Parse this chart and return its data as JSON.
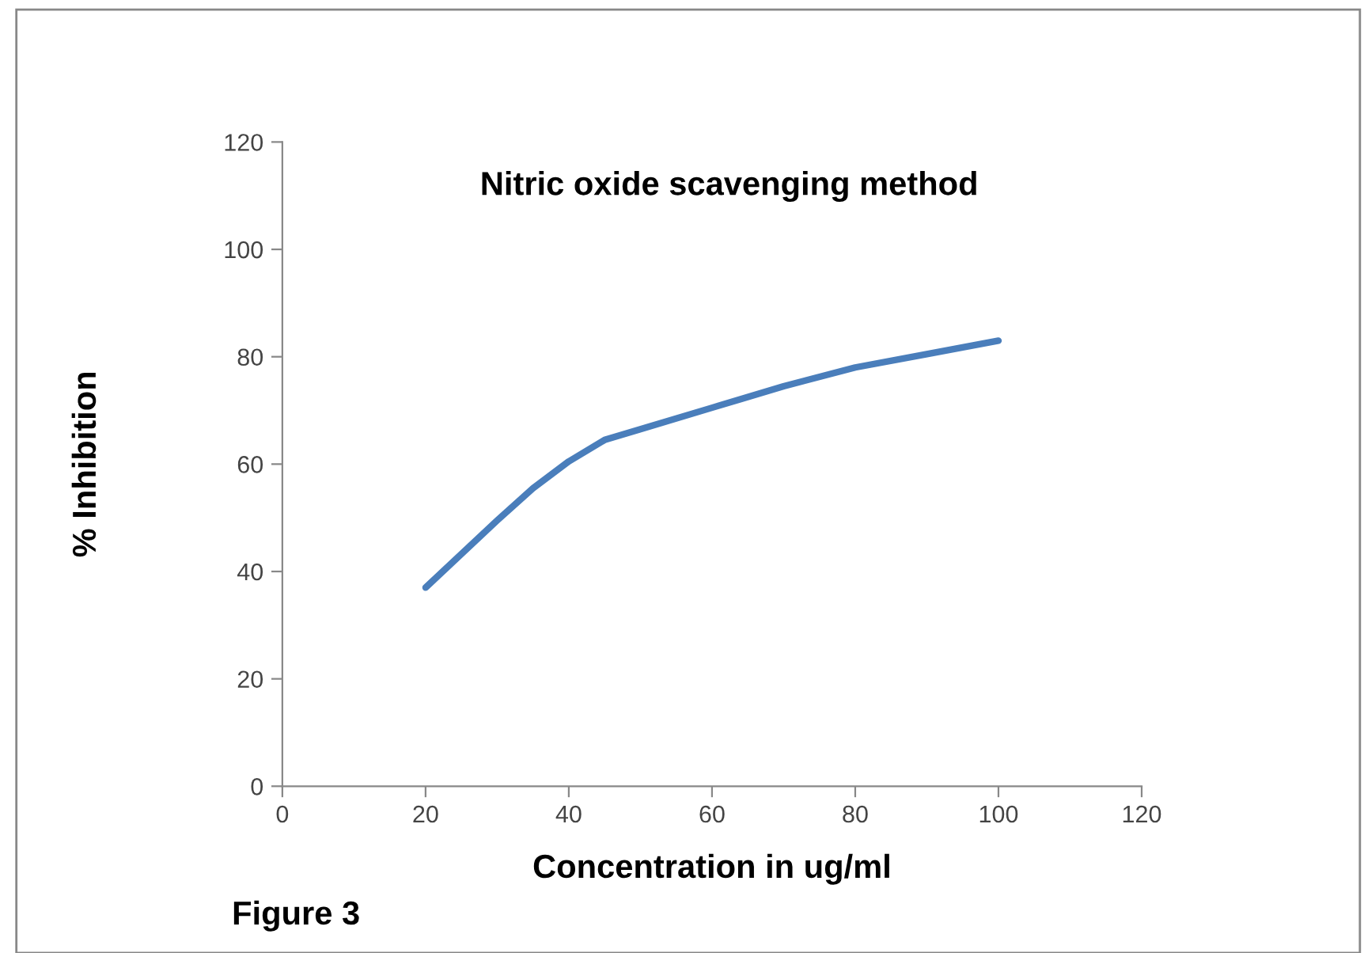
{
  "chart_data": {
    "type": "line",
    "title": "Nitric oxide scavenging method",
    "xlabel": "Concentration in ug/ml",
    "ylabel": "% Inhibition",
    "annotations": [
      "Figure 3"
    ],
    "x": [
      20,
      30,
      35,
      40,
      45,
      50,
      60,
      70,
      80,
      90,
      100
    ],
    "series": [
      {
        "color": "#4a7ebb",
        "values": [
          37,
          49.5,
          55.5,
          60.5,
          64.5,
          66.5,
          70.5,
          74.5,
          78,
          80.5,
          83
        ]
      }
    ],
    "xlim": [
      0,
      120
    ],
    "xticks": [
      0,
      20,
      40,
      60,
      80,
      100,
      120
    ],
    "ylim": [
      0,
      120
    ],
    "yticks": [
      0,
      20,
      40,
      60,
      80,
      100,
      120
    ],
    "grid": false,
    "legend": false,
    "marker": "none",
    "line_style": "solid"
  }
}
